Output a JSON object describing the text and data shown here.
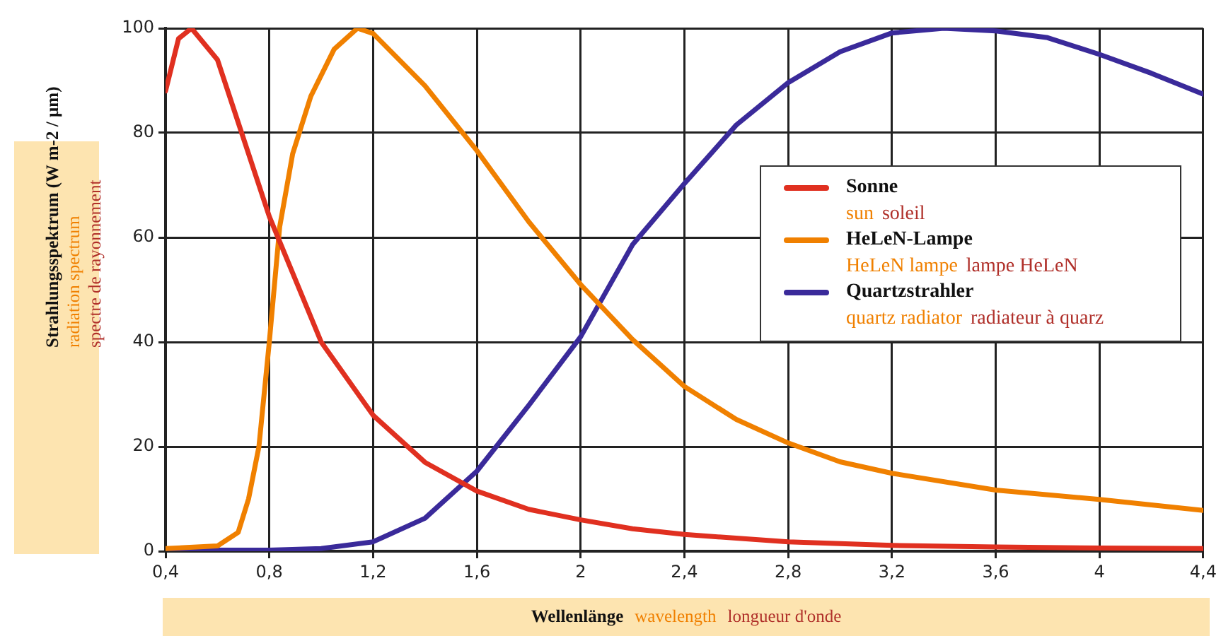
{
  "chart_data": {
    "type": "line",
    "xlabel": "Wellenlänge  wavelength  longueur d'onde",
    "ylabel": "Strahlungsspektrum (W m-2 / µm)\nradiation spectrum\nspectre de rayonnement",
    "xlim": [
      0.4,
      4.4
    ],
    "xticks": [
      {
        "value": 0.4,
        "label": "0,4"
      },
      {
        "value": 0.8,
        "label": "0,8"
      },
      {
        "value": 1.2,
        "label": "1,2"
      },
      {
        "value": 1.6,
        "label": "1,6"
      },
      2,
      {
        "value": 2.4,
        "label": "2,4"
      },
      {
        "value": 2.8,
        "label": "2,8"
      },
      {
        "value": 3.2,
        "label": "3,2"
      },
      {
        "value": 3.6,
        "label": "3,6"
      },
      4,
      {
        "value": 4.4,
        "label": "4,4"
      }
    ],
    "ylim": [
      0,
      100
    ],
    "yticks": [
      0,
      20,
      40,
      60,
      80,
      100
    ],
    "grid": true,
    "legend": "right",
    "marker": "none",
    "line_style": "solid",
    "series": [
      {
        "name": "Sonne\nsun  soleil",
        "color": "#e03020",
        "x": [
          0.4,
          0.45,
          0.5,
          0.6,
          0.7,
          0.8,
          1.0,
          1.2,
          1.4,
          1.6,
          1.8,
          2.0,
          2.2,
          2.4,
          2.8,
          3.2,
          3.6,
          4.0,
          4.4
        ],
        "values": [
          88,
          98,
          100,
          94,
          79,
          64,
          40,
          26,
          17,
          11.5,
          8,
          6,
          4.3,
          3.2,
          1.8,
          1.1,
          0.8,
          0.6,
          0.5
        ]
      },
      {
        "name": "HeLeN-Lampe\nHeLeN lampe  lampe HeLeN",
        "color": "#f08000",
        "x": [
          0.4,
          0.6,
          0.68,
          0.72,
          0.76,
          0.8,
          0.84,
          0.89,
          0.96,
          1.05,
          1.14,
          1.2,
          1.4,
          1.6,
          1.8,
          2.0,
          2.2,
          2.4,
          2.6,
          2.8,
          3.0,
          3.2,
          3.6,
          4.0,
          4.4
        ],
        "values": [
          0.5,
          1,
          3.6,
          10,
          20,
          40,
          62,
          76,
          87,
          96,
          100,
          99,
          89,
          76.6,
          63,
          51,
          40.5,
          31.5,
          25.2,
          20.7,
          17.1,
          14.9,
          11.7,
          9.9,
          7.8
        ]
      },
      {
        "name": "Quartzstrahler\nquartz radiator  radiateur à quarz",
        "color": "#3a2a9a",
        "x": [
          0.4,
          0.8,
          1.0,
          1.2,
          1.4,
          1.6,
          1.8,
          2.0,
          2.2,
          2.4,
          2.6,
          2.8,
          3.0,
          3.2,
          3.4,
          3.6,
          3.8,
          4.0,
          4.2,
          4.4
        ],
        "values": [
          0.2,
          0.2,
          0.5,
          1.8,
          6.3,
          15.3,
          27.9,
          41,
          58.6,
          70.3,
          81.5,
          89.6,
          95.5,
          99.1,
          100,
          99.5,
          98.2,
          95,
          91.4,
          87.4
        ]
      }
    ]
  }
}
